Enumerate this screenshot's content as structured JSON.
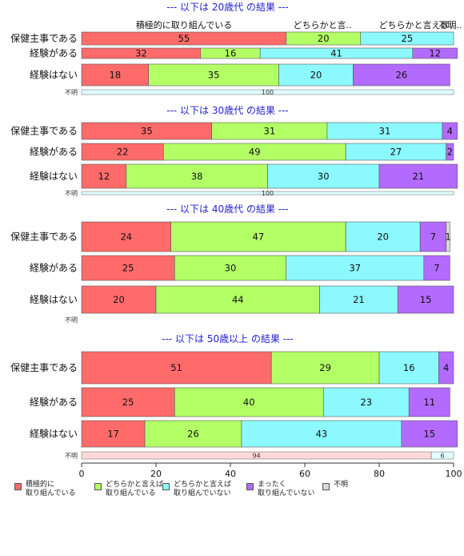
{
  "chart_data": {
    "type": "bar",
    "orientation": "horizontal",
    "stacked": true,
    "xlim": [
      0,
      100
    ],
    "x_ticks": [
      "0",
      "20",
      "40",
      "60",
      "80",
      "100"
    ],
    "legend_position": "bottom",
    "grid": false,
    "series_names": [
      "積極的に\n取り組んでいる",
      "どちらかと言えば\n取り組んでいる",
      "どちらかと言えば\n取り組んでいない",
      "まったく\n取り組んでいない",
      "不明"
    ],
    "colors": [
      "#ff6b6b",
      "#b3ff66",
      "#8cf9ff",
      "#b36bff",
      "#d9d9d9"
    ],
    "panels": [
      {
        "title": "--- 以下は 20歳代 の結果 ---",
        "header_labels": [
          "積極的に取り組んでいる",
          "どちらかと言..",
          "どちらかと言えば..",
          "不明.."
        ],
        "rows": [
          {
            "label": "保健主事である",
            "values": [
              55,
              20,
              25,
              0,
              0
            ]
          },
          {
            "label": "経験がある",
            "values": [
              32,
              16,
              41,
              12,
              0
            ]
          },
          {
            "label": "経験はない",
            "values": [
              18,
              35,
              20,
              26,
              0
            ]
          }
        ],
        "unknown": {
          "label": "不明",
          "values": [
            0,
            0,
            100,
            0,
            0
          ]
        }
      },
      {
        "title": "--- 以下は 30歳代 の結果 ---",
        "header_labels": [],
        "rows": [
          {
            "label": "保健主事である",
            "values": [
              35,
              31,
              31,
              4,
              0
            ]
          },
          {
            "label": "経験がある",
            "values": [
              22,
              49,
              27,
              2,
              0
            ]
          },
          {
            "label": "経験はない",
            "values": [
              12,
              38,
              30,
              21,
              0
            ]
          }
        ],
        "unknown": {
          "label": "不明",
          "values": [
            0,
            0,
            100,
            0,
            0
          ]
        }
      },
      {
        "title": "--- 以下は 40歳代 の結果 ---",
        "header_labels": [],
        "rows": [
          {
            "label": "保健主事である",
            "values": [
              24,
              47,
              20,
              7,
              1
            ]
          },
          {
            "label": "経験がある",
            "values": [
              25,
              30,
              37,
              7,
              0
            ]
          },
          {
            "label": "経験はない",
            "values": [
              20,
              44,
              21,
              15,
              0
            ]
          }
        ],
        "unknown": {
          "label": "不明",
          "values": [
            0,
            0,
            0,
            0,
            0
          ]
        }
      },
      {
        "title": "--- 以下は 50歳以上 の結果 ---",
        "header_labels": [],
        "rows": [
          {
            "label": "保健主事である",
            "values": [
              51,
              29,
              16,
              4,
              0
            ]
          },
          {
            "label": "経験がある",
            "values": [
              25,
              40,
              23,
              11,
              0
            ]
          },
          {
            "label": "経験はない",
            "values": [
              17,
              26,
              43,
              15,
              0
            ]
          }
        ],
        "unknown": {
          "label": "不明",
          "values": [
            94,
            0,
            6,
            0,
            0
          ]
        }
      }
    ]
  }
}
